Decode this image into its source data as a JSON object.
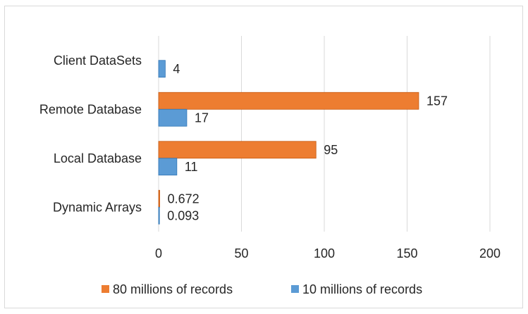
{
  "chart_data": {
    "type": "bar",
    "orientation": "horizontal",
    "title": "",
    "xlabel": "",
    "ylabel": "",
    "categories": [
      "Client DataSets",
      "Remote Database",
      "Local Database",
      "Dynamic Arrays"
    ],
    "series": [
      {
        "name": "80 millions of records",
        "color": "#ed7d31",
        "values": [
          null,
          157,
          95,
          0.672
        ],
        "value_labels": [
          "",
          "157",
          "95",
          "0.672"
        ]
      },
      {
        "name": "10 millions of records",
        "color": "#5b9bd5",
        "values": [
          4,
          17,
          11,
          0.093
        ],
        "value_labels": [
          "4",
          "17",
          "11",
          "0.093"
        ]
      }
    ],
    "xlim": [
      0,
      200
    ],
    "xticks": [
      "0",
      "50",
      "100",
      "150",
      "200"
    ],
    "grid": true,
    "legend": "bottom"
  }
}
